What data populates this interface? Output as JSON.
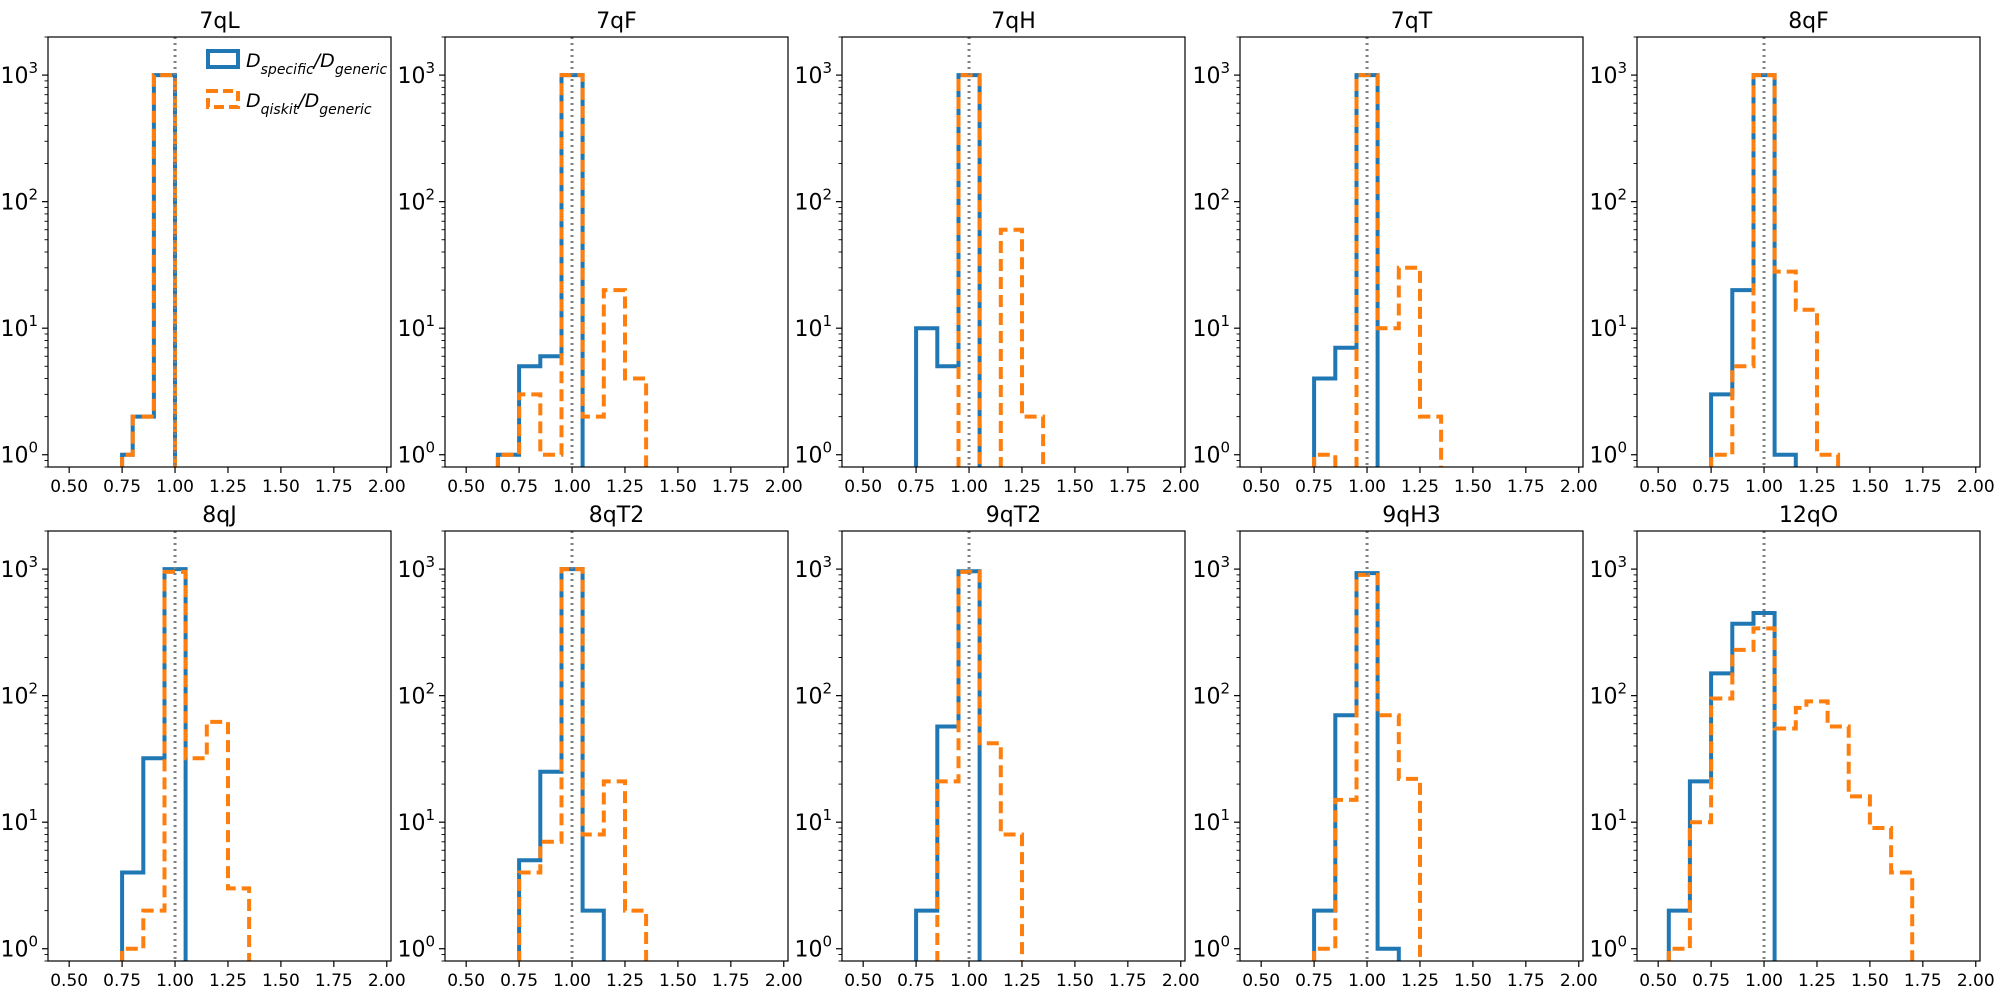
{
  "figure": {
    "colors": {
      "specific": "#1f77b4",
      "qiskit": "#ff7f0e",
      "reference": "#808080"
    },
    "legend": {
      "specific_num": "D",
      "specific_num_sub": "specific",
      "specific_den": "D",
      "specific_den_sub": "generic",
      "qiskit_num": "D",
      "qiskit_num_sub": "qiskit",
      "qiskit_den": "D",
      "qiskit_den_sub": "generic"
    }
  },
  "chart_data": [
    {
      "type": "histogram-step",
      "title": "7qL",
      "xlim": [
        0.4,
        2.02
      ],
      "ylim_log": [
        0.8,
        2000
      ],
      "xticks": [
        "0.50",
        "0.75",
        "1.00",
        "1.25",
        "1.50",
        "1.75",
        "2.00"
      ],
      "yticks": [
        "10^0",
        "10^1",
        "10^2",
        "10^3"
      ],
      "bin_edges": [
        0.5,
        0.55,
        0.6,
        0.65,
        0.7,
        0.75,
        0.8,
        0.85,
        0.9,
        0.95,
        1.0,
        1.05,
        1.1,
        1.15,
        1.2,
        1.25,
        1.3,
        1.35,
        1.4,
        1.45,
        1.5,
        1.55,
        1.6,
        1.65,
        1.7,
        1.75,
        1.8
      ],
      "series": [
        {
          "name": "specific",
          "values": [
            0,
            0,
            0,
            0,
            0,
            1,
            2,
            2,
            1000,
            1000,
            0,
            0,
            0,
            0,
            0,
            0,
            0,
            0,
            0,
            0,
            0,
            0,
            0,
            0,
            0,
            0
          ]
        },
        {
          "name": "qiskit",
          "values": [
            0,
            0,
            0,
            0,
            0,
            1,
            2,
            2,
            1000,
            1000,
            0,
            0,
            0,
            0,
            0,
            0,
            0,
            0,
            0,
            0,
            0,
            0,
            0,
            0,
            0,
            0
          ]
        }
      ],
      "reference_line_x": 1.0
    },
    {
      "type": "histogram-step",
      "title": "7qF",
      "xlim": [
        0.4,
        2.02
      ],
      "ylim_log": [
        0.8,
        2000
      ],
      "xticks": [
        "0.50",
        "0.75",
        "1.00",
        "1.25",
        "1.50",
        "1.75",
        "2.00"
      ],
      "yticks": [
        "10^0",
        "10^1",
        "10^2",
        "10^3"
      ],
      "bin_edges": [
        0.5,
        0.55,
        0.6,
        0.65,
        0.7,
        0.75,
        0.8,
        0.85,
        0.9,
        0.95,
        1.0,
        1.05,
        1.1,
        1.15,
        1.2,
        1.25,
        1.3,
        1.35,
        1.4,
        1.45,
        1.5,
        1.55,
        1.6,
        1.65,
        1.7,
        1.75,
        1.8
      ],
      "series": [
        {
          "name": "specific",
          "values": [
            0,
            0,
            0,
            1,
            1,
            5,
            5,
            6,
            6,
            1000,
            1000,
            0,
            0,
            0,
            0,
            0,
            0,
            0,
            0,
            0,
            0,
            0,
            0,
            0,
            0,
            0
          ]
        },
        {
          "name": "qiskit",
          "values": [
            0,
            0,
            0,
            1,
            1,
            3,
            3,
            1,
            1,
            1000,
            1000,
            2,
            2,
            20,
            20,
            4,
            4,
            0,
            0,
            0,
            0,
            0,
            0,
            0,
            0,
            0
          ]
        }
      ],
      "reference_line_x": 1.0
    },
    {
      "type": "histogram-step",
      "title": "7qH",
      "xlim": [
        0.4,
        2.02
      ],
      "ylim_log": [
        0.8,
        2000
      ],
      "xticks": [
        "0.50",
        "0.75",
        "1.00",
        "1.25",
        "1.50",
        "1.75",
        "2.00"
      ],
      "yticks": [
        "10^0",
        "10^1",
        "10^2",
        "10^3"
      ],
      "bin_edges": [
        0.5,
        0.55,
        0.6,
        0.65,
        0.7,
        0.75,
        0.8,
        0.85,
        0.9,
        0.95,
        1.0,
        1.05,
        1.1,
        1.15,
        1.2,
        1.25,
        1.3,
        1.35,
        1.4,
        1.45,
        1.5,
        1.55,
        1.6,
        1.65,
        1.7,
        1.75,
        1.8
      ],
      "series": [
        {
          "name": "specific",
          "values": [
            0,
            0,
            0,
            0,
            0,
            10,
            10,
            5,
            5,
            1000,
            1000,
            0,
            0,
            0,
            0,
            0,
            0,
            0,
            0,
            0,
            0,
            0,
            0,
            0,
            0,
            0
          ]
        },
        {
          "name": "qiskit",
          "values": [
            0,
            0,
            0,
            0,
            0,
            0,
            0,
            0,
            0,
            1000,
            1000,
            0,
            0,
            60,
            60,
            2,
            2,
            0,
            0,
            0,
            0,
            0,
            0,
            0,
            0,
            0
          ]
        }
      ],
      "reference_line_x": 1.0
    },
    {
      "type": "histogram-step",
      "title": "7qT",
      "xlim": [
        0.4,
        2.02
      ],
      "ylim_log": [
        0.8,
        2000
      ],
      "xticks": [
        "0.50",
        "0.75",
        "1.00",
        "1.25",
        "1.50",
        "1.75",
        "2.00"
      ],
      "yticks": [
        "10^0",
        "10^1",
        "10^2",
        "10^3"
      ],
      "bin_edges": [
        0.5,
        0.55,
        0.6,
        0.65,
        0.7,
        0.75,
        0.8,
        0.85,
        0.9,
        0.95,
        1.0,
        1.05,
        1.1,
        1.15,
        1.2,
        1.25,
        1.3,
        1.35,
        1.4,
        1.45,
        1.5,
        1.55,
        1.6,
        1.65,
        1.7,
        1.75,
        1.8
      ],
      "series": [
        {
          "name": "specific",
          "values": [
            0,
            0,
            0,
            0,
            0,
            4,
            4,
            7,
            7,
            1000,
            1000,
            0,
            0,
            0,
            0,
            0,
            0,
            0,
            0,
            0,
            0,
            0,
            0,
            0,
            0,
            0
          ]
        },
        {
          "name": "qiskit",
          "values": [
            0,
            0,
            0,
            0,
            0,
            1,
            1,
            0,
            0,
            1000,
            1000,
            10,
            10,
            30,
            30,
            2,
            2,
            0,
            0,
            0,
            0,
            0,
            0,
            0,
            0,
            0
          ]
        }
      ],
      "reference_line_x": 1.0
    },
    {
      "type": "histogram-step",
      "title": "8qF",
      "xlim": [
        0.4,
        2.02
      ],
      "ylim_log": [
        0.8,
        2000
      ],
      "xticks": [
        "0.50",
        "0.75",
        "1.00",
        "1.25",
        "1.50",
        "1.75",
        "2.00"
      ],
      "yticks": [
        "10^0",
        "10^1",
        "10^2",
        "10^3"
      ],
      "bin_edges": [
        0.5,
        0.55,
        0.6,
        0.65,
        0.7,
        0.75,
        0.8,
        0.85,
        0.9,
        0.95,
        1.0,
        1.05,
        1.1,
        1.15,
        1.2,
        1.25,
        1.3,
        1.35,
        1.4,
        1.45,
        1.5,
        1.55,
        1.6,
        1.65,
        1.7,
        1.75,
        1.8
      ],
      "series": [
        {
          "name": "specific",
          "values": [
            0,
            0,
            0,
            0,
            0,
            3,
            3,
            20,
            20,
            1000,
            1000,
            1,
            1,
            0,
            0,
            0,
            0,
            0,
            0,
            0,
            0,
            0,
            0,
            0,
            0,
            0
          ]
        },
        {
          "name": "qiskit",
          "values": [
            0,
            0,
            0,
            0,
            0,
            1,
            1,
            5,
            5,
            1000,
            1000,
            28,
            28,
            14,
            14,
            1,
            1,
            0,
            0,
            0,
            0,
            0,
            0,
            0,
            0,
            0
          ]
        }
      ],
      "reference_line_x": 1.0
    },
    {
      "type": "histogram-step",
      "title": "8qJ",
      "xlim": [
        0.4,
        2.02
      ],
      "ylim_log": [
        0.8,
        2000
      ],
      "xticks": [
        "0.50",
        "0.75",
        "1.00",
        "1.25",
        "1.50",
        "1.75",
        "2.00"
      ],
      "yticks": [
        "10^0",
        "10^1",
        "10^2",
        "10^3"
      ],
      "bin_edges": [
        0.5,
        0.55,
        0.6,
        0.65,
        0.7,
        0.75,
        0.8,
        0.85,
        0.9,
        0.95,
        1.0,
        1.05,
        1.1,
        1.15,
        1.2,
        1.25,
        1.3,
        1.35,
        1.4,
        1.45,
        1.5,
        1.55,
        1.6,
        1.65,
        1.7,
        1.75,
        1.8
      ],
      "series": [
        {
          "name": "specific",
          "values": [
            0,
            0,
            0,
            0,
            0,
            4,
            4,
            32,
            32,
            1000,
            1000,
            0,
            0,
            0,
            0,
            0,
            0,
            0,
            0,
            0,
            0,
            0,
            0,
            0,
            0,
            0
          ]
        },
        {
          "name": "qiskit",
          "values": [
            0,
            0,
            0,
            0,
            0,
            1,
            1,
            2,
            2,
            950,
            950,
            32,
            32,
            62,
            62,
            3,
            3,
            0,
            0,
            0,
            0,
            0,
            0,
            0,
            0,
            0
          ]
        }
      ],
      "reference_line_x": 1.0
    },
    {
      "type": "histogram-step",
      "title": "8qT2",
      "xlim": [
        0.4,
        2.02
      ],
      "ylim_log": [
        0.8,
        2000
      ],
      "xticks": [
        "0.50",
        "0.75",
        "1.00",
        "1.25",
        "1.50",
        "1.75",
        "2.00"
      ],
      "yticks": [
        "10^0",
        "10^1",
        "10^2",
        "10^3"
      ],
      "bin_edges": [
        0.5,
        0.55,
        0.6,
        0.65,
        0.7,
        0.75,
        0.8,
        0.85,
        0.9,
        0.95,
        1.0,
        1.05,
        1.1,
        1.15,
        1.2,
        1.25,
        1.3,
        1.35,
        1.4,
        1.45,
        1.5,
        1.55,
        1.6,
        1.65,
        1.7,
        1.75,
        1.8
      ],
      "series": [
        {
          "name": "specific",
          "values": [
            0,
            0,
            0,
            0,
            0,
            5,
            5,
            25,
            25,
            1000,
            1000,
            2,
            2,
            0,
            0,
            0,
            0,
            0,
            0,
            0,
            0,
            0,
            0,
            0,
            0,
            0
          ]
        },
        {
          "name": "qiskit",
          "values": [
            0,
            0,
            0,
            0,
            0,
            4,
            4,
            7,
            7,
            1000,
            1000,
            8,
            8,
            21,
            21,
            2,
            2,
            0,
            0,
            0,
            0,
            0,
            0,
            0,
            0,
            0
          ]
        }
      ],
      "reference_line_x": 1.0
    },
    {
      "type": "histogram-step",
      "title": "9qT2",
      "xlim": [
        0.4,
        2.02
      ],
      "ylim_log": [
        0.8,
        2000
      ],
      "xticks": [
        "0.50",
        "0.75",
        "1.00",
        "1.25",
        "1.50",
        "1.75",
        "2.00"
      ],
      "yticks": [
        "10^0",
        "10^1",
        "10^2",
        "10^3"
      ],
      "bin_edges": [
        0.5,
        0.55,
        0.6,
        0.65,
        0.7,
        0.75,
        0.8,
        0.85,
        0.9,
        0.95,
        1.0,
        1.05,
        1.1,
        1.15,
        1.2,
        1.25,
        1.3,
        1.35,
        1.4,
        1.45,
        1.5,
        1.55,
        1.6,
        1.65,
        1.7,
        1.75,
        1.8
      ],
      "series": [
        {
          "name": "specific",
          "values": [
            0,
            0,
            0,
            0,
            0,
            2,
            2,
            57,
            57,
            960,
            960,
            0,
            0,
            0,
            0,
            0,
            0,
            0,
            0,
            0,
            0,
            0,
            0,
            0,
            0,
            0
          ]
        },
        {
          "name": "qiskit",
          "values": [
            0,
            0,
            0,
            0,
            0,
            0,
            0,
            21,
            21,
            950,
            950,
            42,
            42,
            8,
            8,
            0,
            0,
            0,
            0,
            0,
            0,
            0,
            0,
            0,
            0,
            0
          ]
        }
      ],
      "reference_line_x": 1.0
    },
    {
      "type": "histogram-step",
      "title": "9qH3",
      "xlim": [
        0.4,
        2.02
      ],
      "ylim_log": [
        0.8,
        2000
      ],
      "xticks": [
        "0.50",
        "0.75",
        "1.00",
        "1.25",
        "1.50",
        "1.75",
        "2.00"
      ],
      "yticks": [
        "10^0",
        "10^1",
        "10^2",
        "10^3"
      ],
      "bin_edges": [
        0.5,
        0.55,
        0.6,
        0.65,
        0.7,
        0.75,
        0.8,
        0.85,
        0.9,
        0.95,
        1.0,
        1.05,
        1.1,
        1.15,
        1.2,
        1.25,
        1.3,
        1.35,
        1.4,
        1.45,
        1.5,
        1.55,
        1.6,
        1.65,
        1.7,
        1.75,
        1.8
      ],
      "series": [
        {
          "name": "specific",
          "values": [
            0,
            0,
            0,
            0,
            0,
            2,
            2,
            70,
            70,
            930,
            930,
            1,
            1,
            0,
            0,
            0,
            0,
            0,
            0,
            0,
            0,
            0,
            0,
            0,
            0,
            0
          ]
        },
        {
          "name": "qiskit",
          "values": [
            0,
            0,
            0,
            0,
            0,
            1,
            1,
            15,
            15,
            900,
            900,
            70,
            70,
            22,
            22,
            0,
            0,
            0,
            0,
            0,
            0,
            0,
            0,
            0,
            0,
            0
          ]
        }
      ],
      "reference_line_x": 1.0
    },
    {
      "type": "histogram-step",
      "title": "12qO",
      "xlim": [
        0.4,
        2.02
      ],
      "ylim_log": [
        0.8,
        2000
      ],
      "xticks": [
        "0.50",
        "0.75",
        "1.00",
        "1.25",
        "1.50",
        "1.75",
        "2.00"
      ],
      "yticks": [
        "10^0",
        "10^1",
        "10^2",
        "10^3"
      ],
      "bin_edges": [
        0.5,
        0.55,
        0.6,
        0.65,
        0.7,
        0.75,
        0.8,
        0.85,
        0.9,
        0.95,
        1.0,
        1.05,
        1.1,
        1.15,
        1.2,
        1.25,
        1.3,
        1.35,
        1.4,
        1.45,
        1.5,
        1.55,
        1.6,
        1.65,
        1.7,
        1.75,
        1.8
      ],
      "series": [
        {
          "name": "specific",
          "values": [
            0,
            2,
            2,
            21,
            21,
            150,
            150,
            370,
            370,
            450,
            450,
            0,
            0,
            0,
            0,
            0,
            0,
            0,
            0,
            0,
            0,
            0,
            0,
            0,
            0,
            0
          ]
        },
        {
          "name": "qiskit",
          "values": [
            0,
            1,
            1,
            10,
            10,
            95,
            95,
            230,
            230,
            340,
            340,
            55,
            55,
            80,
            90,
            90,
            57,
            57,
            16,
            16,
            9,
            9,
            4,
            4,
            0,
            0
          ]
        }
      ],
      "reference_line_x": 1.0
    }
  ]
}
